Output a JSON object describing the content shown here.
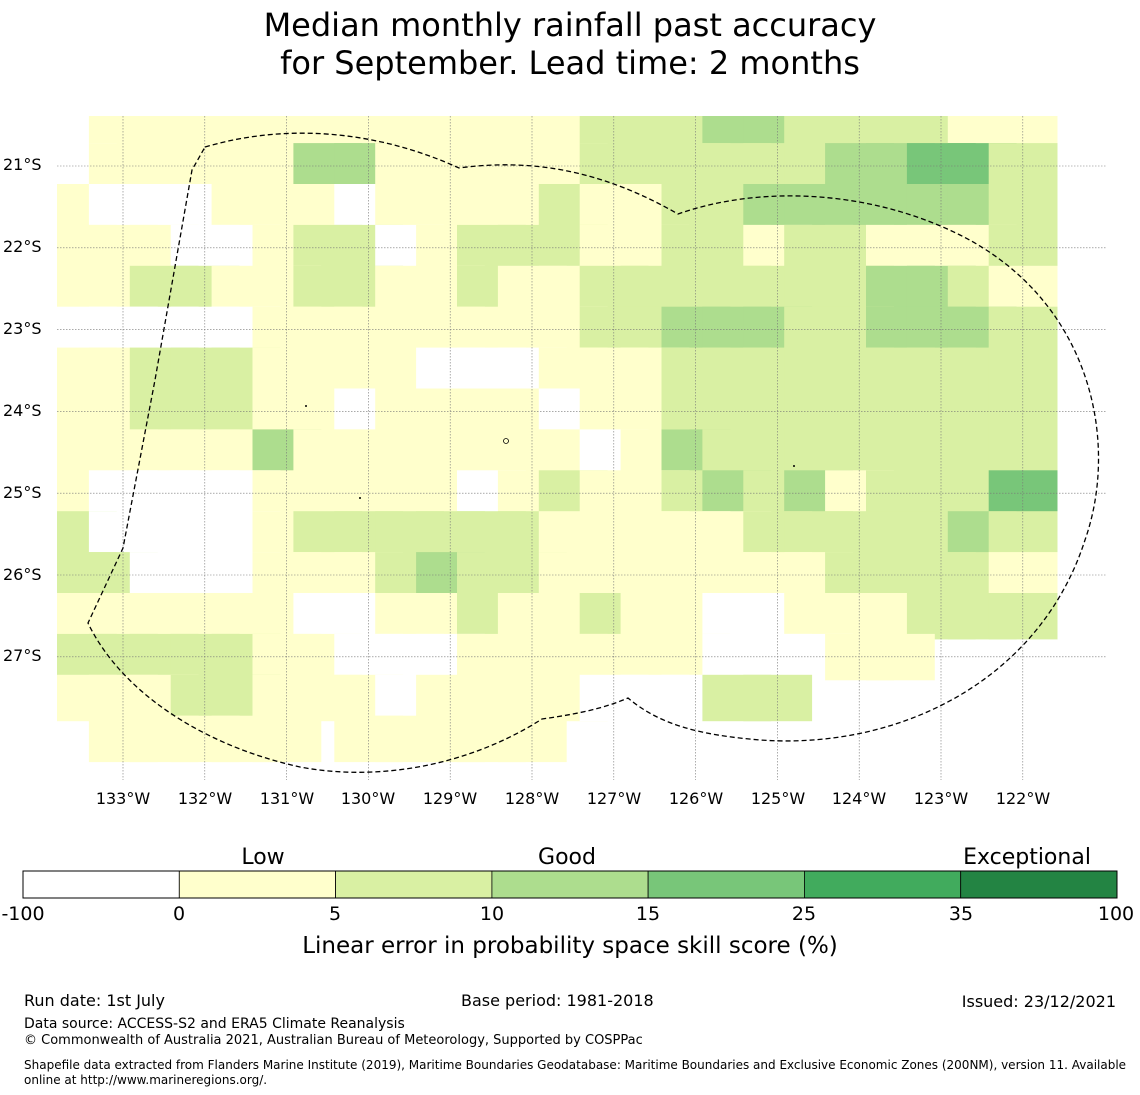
{
  "title": {
    "line1": "Median monthly rainfall past accuracy",
    "line2": "for September. Lead time: 2 months"
  },
  "map": {
    "lat_labels": [
      "21°S",
      "22°S",
      "23°S",
      "24°S",
      "25°S",
      "26°S",
      "27°S"
    ],
    "lon_labels": [
      "133°W",
      "132°W",
      "131°W",
      "130°W",
      "129°W",
      "128°W",
      "127°W",
      "126°W",
      "125°W",
      "124°W",
      "123°W",
      "122°W"
    ],
    "grid_columns_lon_w": [
      133.5,
      133,
      132.5,
      132,
      131.5,
      131,
      130.5,
      130,
      129.5,
      129,
      128.5,
      128,
      127.5,
      127,
      126.5,
      126,
      125.5,
      125,
      124.5,
      124,
      123.5,
      123,
      122.5,
      122,
      121.5
    ],
    "grid_rows_lat_s": [
      20.5,
      21,
      21.5,
      22,
      22.5,
      23,
      23.5,
      24,
      24.5,
      25,
      25.5,
      26,
      26.5,
      27,
      27.5,
      28
    ],
    "skill_class_grid": [
      "-11111111111122233222211",
      "011111331111122222233442",
      "100011101111211223333332",
      "111001220122211221221112",
      "112211221121122222223321",
      "000001111111122333223332",
      "112221111000111222222222",
      "112221101111011222222222",
      "111113111111101322222222",
      "100001111101211232312224",
      "200001222222111112222232",
      "220001112322111111122221",
      "111111001121121100111222",
      "222221100011111100011",
      "111221110111100022",
      "-11111-11111-"
    ],
    "boundary": "dashed",
    "grid": true
  },
  "colorbar": {
    "words": [
      "Low",
      "Good",
      "Exceptional"
    ],
    "ticks": [
      "-100",
      "0",
      "5",
      "10",
      "15",
      "25",
      "35",
      "100"
    ],
    "colors": [
      "#ffffff",
      "#ffffcc",
      "#d9f0a3",
      "#addd8e",
      "#78c679",
      "#41ab5d",
      "#238443"
    ],
    "label": "Linear error in probability space skill score (%)"
  },
  "footer": {
    "run_date": "Run date: 1st July",
    "base_period": "Base period: 1981-2018",
    "issued": "Issued: 23/12/2021",
    "data_source": "Data source: ACCESS-S2 and ERA5 Climate Reanalysis",
    "copyright": "© Commonwealth of Australia 2021, Australian Bureau of Meteorology, Supported by COSPPac",
    "shapefile": "Shapefile data extracted from Flanders Marine Institute (2019), Maritime Boundaries Geodatabase: Maritime Boundaries and Exclusive Economic Zones (200NM), version 11. Available online at http://www.marineregions.org/."
  }
}
